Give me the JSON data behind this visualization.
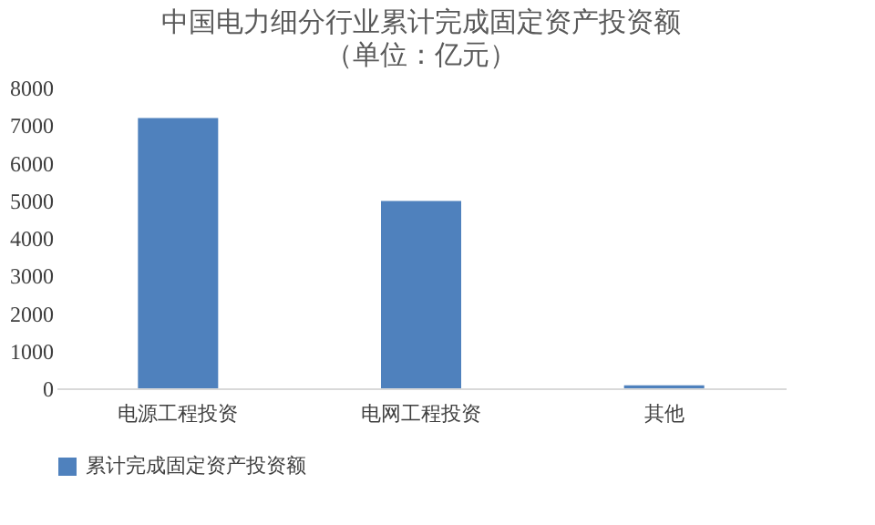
{
  "chart_data": {
    "type": "bar",
    "title": "中国电力细分行业累计完成固定资产投资额",
    "subtitle": "（单位：亿元）",
    "categories": [
      "电源工程投资",
      "电网工程投资",
      "其他"
    ],
    "series": [
      {
        "name": "累计完成固定资产投资额",
        "color": "#4f81bd",
        "values": [
          7190,
          4980,
          80
        ]
      }
    ],
    "ylim": [
      0,
      8000
    ],
    "yticks": [
      0,
      1000,
      2000,
      3000,
      4000,
      5000,
      6000,
      7000,
      8000
    ],
    "grid": false,
    "legend": "bottom"
  }
}
